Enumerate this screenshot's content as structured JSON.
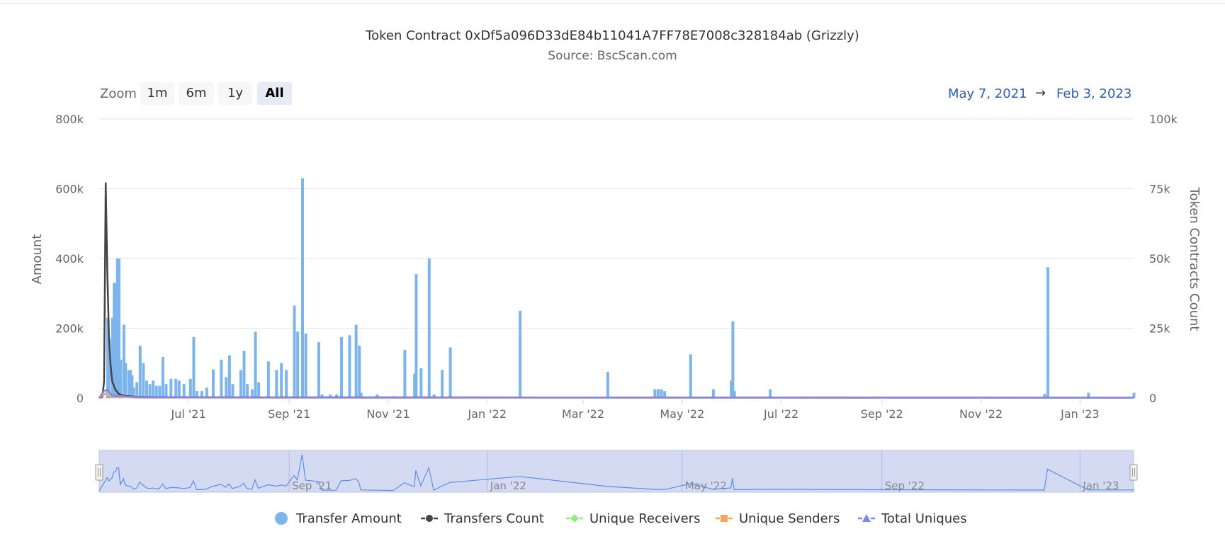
{
  "chart_data": {
    "type": "bar",
    "title": "Token Contract 0xDf5a096D33dE84b11041A7FF78E7008c328184ab (Grizzly)",
    "subtitle": "Source: BscScan.com",
    "ylabel_left": "Amount",
    "ylabel_right": "Token Contracts Count",
    "y_left_range": [
      0,
      800000
    ],
    "y_right_range": [
      0,
      100000
    ],
    "y_left_ticks": [
      "0",
      "200k",
      "400k",
      "600k",
      "800k"
    ],
    "y_right_ticks": [
      "0",
      "25k",
      "50k",
      "75k",
      "100k"
    ],
    "x_range": [
      "2021-05-07",
      "2023-02-03"
    ],
    "x_ticks": [
      {
        "date": "2021-07-01",
        "label": "Jul '21"
      },
      {
        "date": "2021-09-01",
        "label": "Sep '21"
      },
      {
        "date": "2021-11-01",
        "label": "Nov '21"
      },
      {
        "date": "2022-01-01",
        "label": "Jan '22"
      },
      {
        "date": "2022-03-01",
        "label": "Mar '22"
      },
      {
        "date": "2022-05-01",
        "label": "May '22"
      },
      {
        "date": "2022-07-01",
        "label": "Jul '22"
      },
      {
        "date": "2022-09-01",
        "label": "Sep '22"
      },
      {
        "date": "2022-11-01",
        "label": "Nov '22"
      },
      {
        "date": "2023-01-01",
        "label": "Jan '23"
      }
    ],
    "grid": true,
    "legend_position": "bottom",
    "series": [
      {
        "name": "Transfer Amount",
        "type": "bar",
        "axis": "left",
        "color": "#7cb5ec",
        "points": [
          [
            "2021-05-12",
            230000
          ],
          [
            "2021-05-13",
            170000
          ],
          [
            "2021-05-15",
            230000
          ],
          [
            "2021-05-16",
            330000
          ],
          [
            "2021-05-17",
            330000
          ],
          [
            "2021-05-18",
            400000
          ],
          [
            "2021-05-19",
            400000
          ],
          [
            "2021-05-20",
            110000
          ],
          [
            "2021-05-22",
            210000
          ],
          [
            "2021-05-23",
            100000
          ],
          [
            "2021-05-25",
            80000
          ],
          [
            "2021-05-26",
            80000
          ],
          [
            "2021-05-27",
            65000
          ],
          [
            "2021-05-28",
            30000
          ],
          [
            "2021-05-30",
            45000
          ],
          [
            "2021-06-01",
            150000
          ],
          [
            "2021-06-03",
            100000
          ],
          [
            "2021-06-05",
            50000
          ],
          [
            "2021-06-07",
            40000
          ],
          [
            "2021-06-09",
            50000
          ],
          [
            "2021-06-11",
            35000
          ],
          [
            "2021-06-13",
            35000
          ],
          [
            "2021-06-15",
            118000
          ],
          [
            "2021-06-17",
            40000
          ],
          [
            "2021-06-20",
            55000
          ],
          [
            "2021-06-23",
            55000
          ],
          [
            "2021-06-25",
            50000
          ],
          [
            "2021-06-28",
            40000
          ],
          [
            "2021-07-02",
            55000
          ],
          [
            "2021-07-04",
            175000
          ],
          [
            "2021-07-06",
            20000
          ],
          [
            "2021-07-09",
            20000
          ],
          [
            "2021-07-12",
            30000
          ],
          [
            "2021-07-16",
            82000
          ],
          [
            "2021-07-21",
            110000
          ],
          [
            "2021-07-24",
            60000
          ],
          [
            "2021-07-26",
            122000
          ],
          [
            "2021-07-28",
            40000
          ],
          [
            "2021-08-02",
            80000
          ],
          [
            "2021-08-04",
            135000
          ],
          [
            "2021-08-06",
            40000
          ],
          [
            "2021-08-09",
            25000
          ],
          [
            "2021-08-11",
            190000
          ],
          [
            "2021-08-13",
            45000
          ],
          [
            "2021-08-19",
            105000
          ],
          [
            "2021-08-24",
            80000
          ],
          [
            "2021-08-27",
            100000
          ],
          [
            "2021-08-30",
            80000
          ],
          [
            "2021-09-04",
            265000
          ],
          [
            "2021-09-06",
            190000
          ],
          [
            "2021-09-09",
            630000
          ],
          [
            "2021-09-11",
            185000
          ],
          [
            "2021-09-19",
            160000
          ],
          [
            "2021-09-21",
            10000
          ],
          [
            "2021-09-26",
            10000
          ],
          [
            "2021-09-30",
            10000
          ],
          [
            "2021-10-03",
            175000
          ],
          [
            "2021-10-08",
            180000
          ],
          [
            "2021-10-12",
            210000
          ],
          [
            "2021-10-14",
            150000
          ],
          [
            "2021-10-15",
            15000
          ],
          [
            "2021-10-25",
            10000
          ],
          [
            "2021-11-04",
            5000
          ],
          [
            "2021-11-11",
            138000
          ],
          [
            "2021-11-17",
            70000
          ],
          [
            "2021-11-18",
            355000
          ],
          [
            "2021-11-21",
            85000
          ],
          [
            "2021-11-26",
            400000
          ],
          [
            "2021-11-29",
            10000
          ],
          [
            "2021-12-04",
            80000
          ],
          [
            "2021-12-09",
            145000
          ],
          [
            "2022-01-21",
            250000
          ],
          [
            "2022-03-16",
            75000
          ],
          [
            "2022-04-14",
            25000
          ],
          [
            "2022-04-16",
            25000
          ],
          [
            "2022-04-18",
            25000
          ],
          [
            "2022-04-20",
            20000
          ],
          [
            "2022-05-06",
            125000
          ],
          [
            "2022-05-20",
            25000
          ],
          [
            "2022-05-31",
            50000
          ],
          [
            "2022-06-01",
            220000
          ],
          [
            "2022-06-02",
            20000
          ],
          [
            "2022-06-24",
            25000
          ],
          [
            "2022-12-10",
            12000
          ],
          [
            "2022-12-12",
            375000
          ],
          [
            "2023-01-06",
            15000
          ],
          [
            "2023-02-03",
            15000
          ]
        ]
      },
      {
        "name": "Transfers Count",
        "type": "line",
        "axis": "right",
        "color": "#434348",
        "points": [
          [
            "2021-05-07",
            0
          ],
          [
            "2021-05-09",
            400
          ],
          [
            "2021-05-10",
            6000
          ],
          [
            "2021-05-11",
            77000
          ],
          [
            "2021-05-12",
            45000
          ],
          [
            "2021-05-13",
            22000
          ],
          [
            "2021-05-14",
            12000
          ],
          [
            "2021-05-15",
            6000
          ],
          [
            "2021-05-17",
            3000
          ],
          [
            "2021-05-19",
            1500
          ],
          [
            "2021-05-22",
            800
          ],
          [
            "2021-05-30",
            400
          ],
          [
            "2021-06-10",
            250
          ],
          [
            "2023-02-03",
            100
          ]
        ]
      },
      {
        "name": "Unique Receivers",
        "type": "line",
        "axis": "right",
        "color": "#90ed7d",
        "points": [
          [
            "2021-05-07",
            0
          ],
          [
            "2021-05-11",
            1800
          ],
          [
            "2021-05-14",
            600
          ],
          [
            "2021-06-01",
            150
          ],
          [
            "2023-02-03",
            60
          ]
        ]
      },
      {
        "name": "Unique Senders",
        "type": "line",
        "axis": "right",
        "color": "#f7a35c",
        "points": [
          [
            "2021-05-07",
            0
          ],
          [
            "2021-05-11",
            1500
          ],
          [
            "2021-05-14",
            500
          ],
          [
            "2021-06-01",
            120
          ],
          [
            "2023-02-03",
            50
          ]
        ]
      },
      {
        "name": "Total Uniques",
        "type": "line",
        "axis": "right",
        "color": "#8085e9",
        "points": [
          [
            "2021-05-07",
            0
          ],
          [
            "2021-05-10",
            2500
          ],
          [
            "2021-05-12",
            3000
          ],
          [
            "2021-05-15",
            900
          ],
          [
            "2021-06-01",
            250
          ],
          [
            "2023-02-03",
            110
          ]
        ]
      }
    ],
    "navigator": {
      "x_ticks": [
        {
          "date": "2021-09-01",
          "label": "Sep '21"
        },
        {
          "date": "2022-01-01",
          "label": "Jan '22"
        },
        {
          "date": "2022-05-01",
          "label": "May '22"
        },
        {
          "date": "2022-09-01",
          "label": "Sep '22"
        },
        {
          "date": "2023-01-01",
          "label": "Jan '23"
        }
      ],
      "selection": "all"
    }
  },
  "range_selector": {
    "zoom_label": "Zoom",
    "buttons": [
      "1m",
      "6m",
      "1y",
      "All"
    ],
    "active": "All",
    "from": "May 7, 2021",
    "arrow": "→",
    "to": "Feb 3, 2023"
  },
  "legend": [
    {
      "label": "Transfer Amount",
      "color": "#7cb5ec",
      "symbol": "circle"
    },
    {
      "label": "Transfers Count",
      "color": "#434348",
      "symbol": "circle-line"
    },
    {
      "label": "Unique Receivers",
      "color": "#90ed7d",
      "symbol": "diamond-line"
    },
    {
      "label": "Unique Senders",
      "color": "#f7a35c",
      "symbol": "square-line"
    },
    {
      "label": "Total Uniques",
      "color": "#8085e9",
      "symbol": "triangle-line"
    }
  ]
}
